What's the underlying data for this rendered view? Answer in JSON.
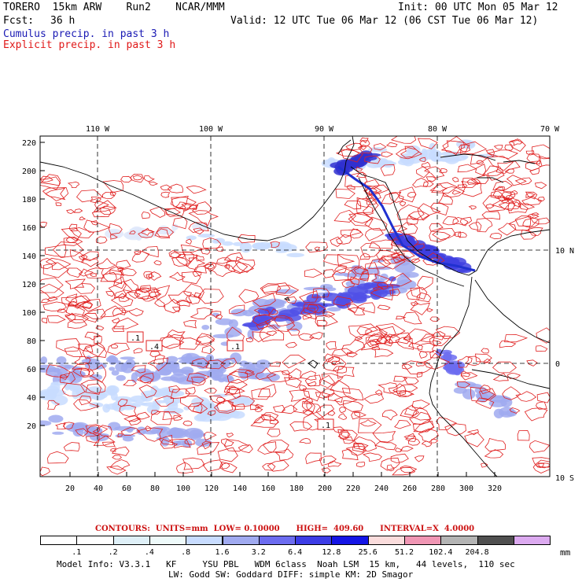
{
  "header": {
    "model": "TORERO  15km ARW    Run2    NCAR/MMM",
    "init": "Init: 00 UTC Mon 05 Mar 12",
    "fcst_label": "Fcst:",
    "fcst_value": "36 h",
    "valid": "Valid: 12 UTC Tue 06 Mar 12 (06 CST Tue 06 Mar 12)",
    "line_cumulus": "Cumulus precip. in past 3 h",
    "line_explicit": "Explicit precip. in past 3 h"
  },
  "map": {
    "lon_labels": [
      "110 W",
      "100 W",
      "90 W",
      "80 W",
      "70 W"
    ],
    "lat_labels": [
      "10 N",
      "0",
      "10 S"
    ],
    "y_ticks": [
      "220",
      "200",
      "180",
      "160",
      "140",
      "120",
      "100",
      "80",
      "60",
      "40",
      "20"
    ],
    "x_ticks": [
      "20",
      "40",
      "60",
      "80",
      "100",
      "120",
      "140",
      "160",
      "180",
      "200",
      "220",
      "240",
      "260",
      "280",
      "300",
      "320"
    ],
    "box_labels": [
      ".1",
      ".4",
      ".1",
      ".1"
    ],
    "ocean_color": "#ffffff",
    "contour_color": "#e02020",
    "coast_color": "#000000"
  },
  "contours_info": {
    "text": "CONTOURS:  UNITS=mm  LOW= 0.10000      HIGH=  409.60      INTERVAL=X  4.0000"
  },
  "colorbar": {
    "labels": [
      ".1",
      ".2",
      ".4",
      ".8",
      "1.6",
      "3.2",
      "6.4",
      "12.8",
      "25.6",
      "51.2",
      "102.4",
      "204.8"
    ],
    "unit": "mm",
    "colors": [
      "#ffffff",
      "#ffffff",
      "#dff0f8",
      "#eefafa",
      "#c8dcff",
      "#a0aaf0",
      "#6c6cf0",
      "#3c3ce6",
      "#1414e6",
      "#fadcdc",
      "#f096b4",
      "#b4b4b4",
      "#505050",
      "#dcaaf0"
    ]
  },
  "footer": {
    "line1": "Model Info: V3.3.1   KF     YSU PBL   WDM 6class  Noah LSM  15 km,   44 levels,  110 sec",
    "line2": "LW: Godd SW: Goddard DIFF: simple KM: 2D Smagor"
  }
}
